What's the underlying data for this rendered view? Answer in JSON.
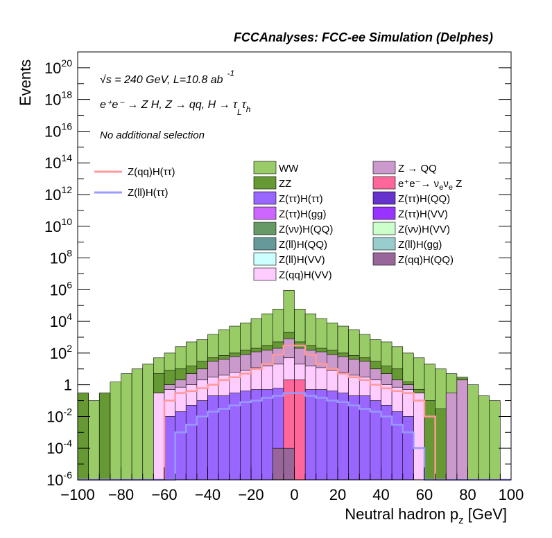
{
  "title": "FCCAnalyses: FCC-ee Simulation (Delphes)",
  "annotations": {
    "line1": "√s = 240 GeV, L=10.8 ab",
    "line1_sup": "-1",
    "line2": "e⁺e⁻ → Z H, Z → qq, H → τ",
    "line2_sub1": "L",
    "line2_tau2": "τ",
    "line2_sub2": "h",
    "line3": "No additional selection"
  },
  "chart_data": {
    "type": "histogram-stacked",
    "xlabel": "Neutral hadron p",
    "xlabel_sub": "z",
    "xlabel_unit": " [GeV]",
    "ylabel": "Events",
    "xlim": [
      -100,
      100
    ],
    "ylim": [
      1e-06,
      1e+21
    ],
    "log_y": true,
    "grid": false,
    "x_ticks": [
      "−100",
      "−80",
      "−60",
      "−40",
      "−20",
      "0",
      "20",
      "40",
      "60",
      "80",
      "100"
    ],
    "y_ticks": [
      {
        "base": "10",
        "exp": "20"
      },
      {
        "base": "10",
        "exp": "18"
      },
      {
        "base": "10",
        "exp": "16"
      },
      {
        "base": "10",
        "exp": "14"
      },
      {
        "base": "10",
        "exp": "12"
      },
      {
        "base": "10",
        "exp": "10"
      },
      {
        "base": "10",
        "exp": "8"
      },
      {
        "base": "10",
        "exp": "6"
      },
      {
        "base": "10",
        "exp": "4"
      },
      {
        "base": "10",
        "exp": "2"
      },
      {
        "base": "1",
        "exp": ""
      },
      {
        "base": "10",
        "exp": "-2"
      },
      {
        "base": "10",
        "exp": "-4"
      },
      {
        "base": "10",
        "exp": "-6"
      }
    ],
    "bin_edges": [
      -100,
      -95,
      -90,
      -85,
      -80,
      -75,
      -70,
      -65,
      -60,
      -55,
      -50,
      -45,
      -40,
      -35,
      -30,
      -25,
      -20,
      -15,
      -10,
      -5,
      0,
      5,
      10,
      15,
      20,
      25,
      30,
      35,
      40,
      45,
      50,
      55,
      60,
      65,
      70,
      75,
      80,
      85,
      90,
      95,
      100
    ],
    "stack_totals": [
      {
        "name": "WW",
        "color": "#99cc66",
        "values": [
          0.3,
          0.1,
          0.3,
          1.5,
          5,
          10,
          20,
          50,
          100,
          250,
          500,
          700,
          1500,
          3000,
          5000,
          8000,
          15000,
          30000,
          60000,
          900000,
          60000,
          30000,
          15000,
          8000,
          5000,
          3000,
          1500,
          700,
          500,
          250,
          100,
          50,
          20,
          10,
          5,
          1.5,
          1,
          0.2,
          0.1,
          1e-06
        ]
      },
      {
        "name": "ZZ",
        "color": "#669933",
        "values": [
          0.3,
          1e-06,
          0.3,
          1e-06,
          1e-06,
          1e-06,
          1e-06,
          5,
          8,
          10,
          15,
          30,
          50,
          70,
          100,
          150,
          200,
          300,
          500,
          2000,
          500,
          300,
          200,
          150,
          100,
          70,
          50,
          30,
          15,
          10,
          1.5,
          0.5,
          0.1,
          0.03,
          1e-06,
          3,
          1e-06,
          1e-06,
          1e-06,
          1e-06
        ]
      },
      {
        "name": "Z → QQ",
        "color": "#cc99cc",
        "values": [
          1e-06,
          1e-06,
          1e-06,
          1e-06,
          1e-06,
          1e-06,
          1e-06,
          0.3,
          1,
          2,
          5,
          10,
          30,
          40,
          60,
          80,
          120,
          150,
          200,
          800,
          200,
          150,
          120,
          80,
          60,
          40,
          30,
          10,
          5,
          2,
          1,
          0.3,
          1e-06,
          1e-06,
          0.3,
          2,
          1e-06,
          1e-06,
          1e-06,
          1e-06
        ]
      },
      {
        "name": "Z(qq)H(VV)",
        "color": "#ffccff",
        "values": [
          1e-06,
          1e-06,
          1e-06,
          1e-06,
          1e-06,
          1e-06,
          1e-06,
          0.3,
          0.5,
          0.7,
          1,
          2,
          3,
          4,
          6,
          8,
          12,
          15,
          20,
          50,
          20,
          15,
          12,
          8,
          6,
          4,
          3,
          2,
          1,
          0.7,
          0.5,
          0.3,
          1e-06,
          1e-06,
          1e-06,
          1e-06,
          1e-06,
          1e-06,
          1e-06,
          1e-06
        ]
      },
      {
        "name": "Z(ττ)H(ττ)",
        "color": "#9966ff",
        "values": [
          1e-06,
          1e-06,
          1e-06,
          1e-06,
          1e-06,
          1e-06,
          1e-06,
          1e-06,
          0.01,
          0.02,
          0.05,
          0.1,
          0.2,
          0.2,
          0.3,
          0.4,
          0.5,
          0.5,
          0.6,
          0.8,
          0.6,
          0.5,
          0.5,
          0.4,
          0.3,
          0.2,
          0.2,
          0.1,
          0.05,
          0.02,
          0.01,
          1e-06,
          1e-06,
          1e-06,
          1e-06,
          1e-06,
          1e-06,
          1e-06,
          1e-06,
          1e-06
        ]
      },
      {
        "name": "e⁺e⁻→ ν",
        "color": "#ff6699",
        "values": [
          1e-06,
          1e-06,
          1e-06,
          1e-06,
          1e-06,
          1e-06,
          1e-06,
          1e-06,
          1e-06,
          1e-06,
          1e-06,
          1e-06,
          1e-06,
          1e-06,
          1e-06,
          1e-06,
          1e-06,
          1e-06,
          1e-06,
          2,
          2,
          1e-06,
          1e-06,
          1e-06,
          1e-06,
          1e-06,
          1e-06,
          1e-06,
          1e-06,
          1e-06,
          1e-06,
          1e-06,
          1e-06,
          1e-06,
          1e-06,
          1e-06,
          1e-06,
          1e-06,
          1e-06,
          1e-06
        ]
      },
      {
        "name": "Z(qq)H(QQ)",
        "color": "#996699",
        "values": [
          1e-06,
          1e-06,
          1e-06,
          1e-06,
          1e-06,
          1e-06,
          1e-06,
          1e-06,
          1e-06,
          1e-06,
          1e-06,
          1e-06,
          1e-06,
          1e-06,
          1e-06,
          1e-06,
          1e-06,
          1e-06,
          0.0001,
          0.0001,
          1e-06,
          1e-06,
          1e-06,
          1e-06,
          1e-06,
          1e-06,
          1e-06,
          1e-06,
          1e-06,
          1e-06,
          1e-06,
          1e-06,
          1e-06,
          1e-06,
          1e-06,
          1e-06,
          1e-06,
          1e-06,
          1e-06,
          1e-06
        ]
      }
    ],
    "lines": [
      {
        "name": "Z(qq)H(ττ)",
        "color": "#ff9999",
        "values": [
          1e-06,
          1e-06,
          1e-06,
          1e-06,
          1e-06,
          1e-06,
          1e-06,
          1e-06,
          0.1,
          0.3,
          0.4,
          0.6,
          1,
          2,
          3,
          5,
          10,
          20,
          80,
          300,
          300,
          80,
          20,
          10,
          5,
          3,
          2,
          1,
          0.6,
          0.4,
          0.3,
          0.1,
          0.01,
          1e-06,
          1e-06,
          1e-06,
          1e-06,
          1e-06,
          1e-06,
          1e-06
        ]
      },
      {
        "name": "Z(ll)H(ττ)",
        "color": "#9999ff",
        "values": [
          1e-06,
          1e-06,
          1e-06,
          1e-06,
          1e-06,
          1e-06,
          1e-06,
          1e-06,
          1e-06,
          0.001,
          0.003,
          0.01,
          0.02,
          0.03,
          0.05,
          0.08,
          0.1,
          0.15,
          0.2,
          0.3,
          0.3,
          0.2,
          0.15,
          0.1,
          0.08,
          0.05,
          0.03,
          0.02,
          0.01,
          0.003,
          0.001,
          0.0001,
          1e-06,
          1e-06,
          1e-06,
          1e-06,
          1e-06,
          1e-06,
          1e-06,
          1e-06
        ]
      }
    ],
    "legend": {
      "placement": "top",
      "lines": [
        {
          "label": "Z(qq)H(ττ)",
          "color": "#ff9999"
        },
        {
          "label": "Z(ll)H(ττ)",
          "color": "#9999ff"
        }
      ],
      "boxes": [
        {
          "label": "WW",
          "color": "#99cc66"
        },
        {
          "label": "Z → QQ",
          "color": "#cc99cc"
        },
        {
          "label": "ZZ",
          "color": "#669933"
        },
        {
          "label": "e⁺e⁻→ ν",
          "sub1": "e",
          "mid": "ν",
          "sub2": "e",
          "tail": " Z",
          "color": "#ff6699"
        },
        {
          "label": "Z(ττ)H(ττ)",
          "color": "#9966ff"
        },
        {
          "label": "Z(ττ)H(QQ)",
          "color": "#6633cc"
        },
        {
          "label": "Z(ττ)H(gg)",
          "color": "#cc66ff"
        },
        {
          "label": "Z(ττ)H(VV)",
          "color": "#9933ff"
        },
        {
          "label": "Z(νν)H(QQ)",
          "color": "#669966"
        },
        {
          "label": "Z(νν)H(VV)",
          "color": "#ccffcc"
        },
        {
          "label": "Z(ll)H(QQ)",
          "color": "#669999"
        },
        {
          "label": "Z(ll)H(gg)",
          "color": "#99cccc"
        },
        {
          "label": "Z(ll)H(VV)",
          "color": "#ccffff"
        },
        {
          "label": "Z(qq)H(QQ)",
          "color": "#996699"
        },
        {
          "label": "Z(qq)H(VV)",
          "color": "#ffccff"
        }
      ]
    }
  }
}
